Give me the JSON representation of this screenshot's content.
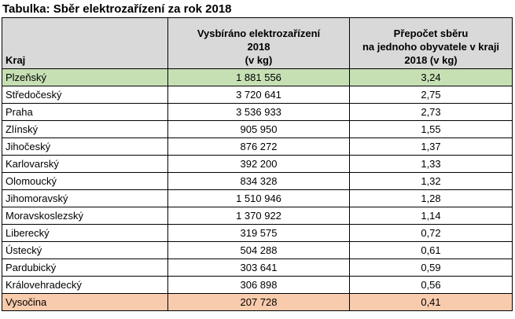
{
  "title": "Tabulka: Sběr elektrozařízení za rok 2018",
  "table": {
    "header": [
      [
        "Kraj"
      ],
      [
        "Vysbíráno elektrozařízení",
        "2018",
        "(v kg)"
      ],
      [
        "Přepočet sběru",
        "na jednoho obyvatele v kraji",
        "2018 (v kg)"
      ]
    ],
    "rows": [
      [
        "Plzeňský",
        "1 881 556",
        "3,24"
      ],
      [
        "Středočeský",
        "3 720 641",
        "2,75"
      ],
      [
        "Praha",
        "3 536 933",
        "2,73"
      ],
      [
        "Zlínský",
        "905 950",
        "1,55"
      ],
      [
        "Jihočeský",
        "876 272",
        "1,37"
      ],
      [
        "Karlovarský",
        "392 200",
        "1,33"
      ],
      [
        "Olomoucký",
        "834 328",
        "1,32"
      ],
      [
        "Jihomoravský",
        "1 510 946",
        "1,28"
      ],
      [
        "Moravskoslezský",
        "1 370 922",
        "1,14"
      ],
      [
        "Liberecký",
        "319 575",
        "0,72"
      ],
      [
        "Ústecký",
        "504 288",
        "0,61"
      ],
      [
        "Pardubický",
        "303 641",
        "0,59"
      ],
      [
        "Královehradecký",
        "306 898",
        "0,56"
      ],
      [
        "Vysočina",
        "207 728",
        "0,41"
      ]
    ]
  }
}
